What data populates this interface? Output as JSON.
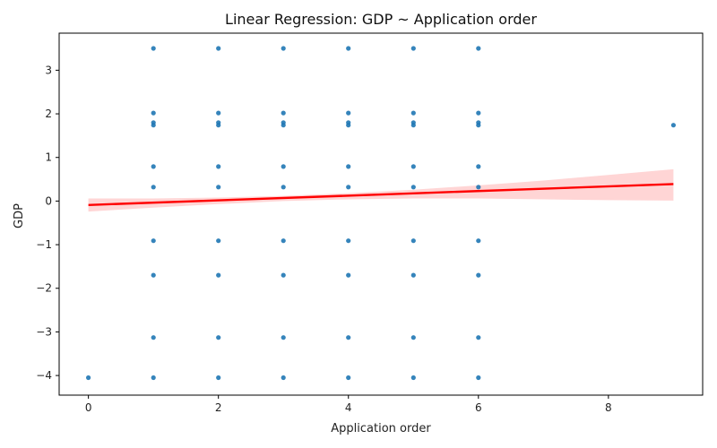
{
  "chart_data": {
    "type": "scatter",
    "title": "Linear Regression: GDP ~ Application order",
    "xlabel": "Application order",
    "ylabel": "GDP",
    "xlim": [
      -0.45,
      9.45
    ],
    "ylim": [
      -4.45,
      3.85
    ],
    "xticks": [
      0,
      2,
      4,
      6,
      8
    ],
    "yticks": [
      -4,
      -3,
      -2,
      -1,
      0,
      1,
      2,
      3
    ],
    "tick_labels": {
      "x": [
        "0",
        "2",
        "4",
        "6",
        "8"
      ],
      "y": [
        "−4",
        "−3",
        "−2",
        "−1",
        "0",
        "1",
        "2",
        "3"
      ]
    },
    "grid": false,
    "colors": {
      "points": "#1f77b4",
      "regression_line": "#ff0000",
      "confidence_band": "#ffb3b3"
    },
    "series": [
      {
        "type": "scatter",
        "points": [
          {
            "x": 0,
            "y": -4.05
          },
          {
            "x": 1,
            "y": 3.5
          },
          {
            "x": 1,
            "y": 2.02
          },
          {
            "x": 1,
            "y": 1.8
          },
          {
            "x": 1,
            "y": 1.74
          },
          {
            "x": 1,
            "y": 0.79
          },
          {
            "x": 1,
            "y": 0.32
          },
          {
            "x": 1,
            "y": -0.91
          },
          {
            "x": 1,
            "y": -1.7
          },
          {
            "x": 1,
            "y": -3.13
          },
          {
            "x": 1,
            "y": -4.05
          },
          {
            "x": 2,
            "y": 3.5
          },
          {
            "x": 2,
            "y": 2.02
          },
          {
            "x": 2,
            "y": 1.8
          },
          {
            "x": 2,
            "y": 1.74
          },
          {
            "x": 2,
            "y": 0.79
          },
          {
            "x": 2,
            "y": 0.32
          },
          {
            "x": 2,
            "y": -0.91
          },
          {
            "x": 2,
            "y": -1.7
          },
          {
            "x": 2,
            "y": -3.13
          },
          {
            "x": 2,
            "y": -4.05
          },
          {
            "x": 3,
            "y": 3.5
          },
          {
            "x": 3,
            "y": 2.02
          },
          {
            "x": 3,
            "y": 1.8
          },
          {
            "x": 3,
            "y": 1.74
          },
          {
            "x": 3,
            "y": 0.79
          },
          {
            "x": 3,
            "y": 0.32
          },
          {
            "x": 3,
            "y": -0.91
          },
          {
            "x": 3,
            "y": -1.7
          },
          {
            "x": 3,
            "y": -3.13
          },
          {
            "x": 3,
            "y": -4.05
          },
          {
            "x": 4,
            "y": 3.5
          },
          {
            "x": 4,
            "y": 2.02
          },
          {
            "x": 4,
            "y": 1.8
          },
          {
            "x": 4,
            "y": 1.74
          },
          {
            "x": 4,
            "y": 0.79
          },
          {
            "x": 4,
            "y": 0.32
          },
          {
            "x": 4,
            "y": -0.91
          },
          {
            "x": 4,
            "y": -1.7
          },
          {
            "x": 4,
            "y": -3.13
          },
          {
            "x": 4,
            "y": -4.05
          },
          {
            "x": 5,
            "y": 3.5
          },
          {
            "x": 5,
            "y": 2.02
          },
          {
            "x": 5,
            "y": 1.8
          },
          {
            "x": 5,
            "y": 1.74
          },
          {
            "x": 5,
            "y": 0.79
          },
          {
            "x": 5,
            "y": 0.32
          },
          {
            "x": 5,
            "y": -0.91
          },
          {
            "x": 5,
            "y": -1.7
          },
          {
            "x": 5,
            "y": -3.13
          },
          {
            "x": 5,
            "y": -4.05
          },
          {
            "x": 6,
            "y": 3.5
          },
          {
            "x": 6,
            "y": 2.02
          },
          {
            "x": 6,
            "y": 1.8
          },
          {
            "x": 6,
            "y": 1.74
          },
          {
            "x": 6,
            "y": 0.79
          },
          {
            "x": 6,
            "y": 0.32
          },
          {
            "x": 6,
            "y": -0.91
          },
          {
            "x": 6,
            "y": -1.7
          },
          {
            "x": 6,
            "y": -3.13
          },
          {
            "x": 6,
            "y": -4.05
          },
          {
            "x": 9,
            "y": 1.74
          }
        ]
      },
      {
        "type": "line",
        "points": [
          {
            "x": 0,
            "y": -0.09
          },
          {
            "x": 9,
            "y": 0.39
          }
        ]
      },
      {
        "type": "area",
        "x": [
          0,
          1,
          2,
          3,
          4,
          5,
          6,
          7,
          8,
          9
        ],
        "lower": [
          -0.24,
          -0.15,
          -0.07,
          0.0,
          0.04,
          0.06,
          0.06,
          0.04,
          0.02,
          0.01
        ],
        "upper": [
          0.06,
          0.06,
          0.08,
          0.12,
          0.18,
          0.26,
          0.36,
          0.47,
          0.6,
          0.73
        ]
      }
    ]
  }
}
